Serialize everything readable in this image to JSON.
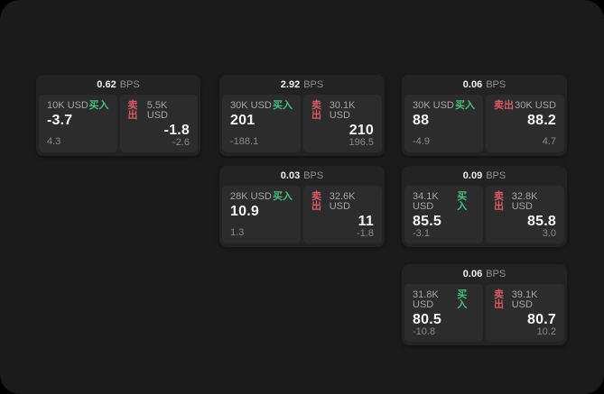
{
  "theme": {
    "outer_bg": "#000000",
    "screen_bg": "#1b1b1b",
    "card_bg": "#232323",
    "panel_bg": "#2c2c2c",
    "buy_color": "#45bf7e",
    "sell_color": "#d85a65",
    "primary_text": "#f5f5f5",
    "muted_text": "#8a8a8a"
  },
  "labels": {
    "bps": "BPS",
    "buy": "买入",
    "sell": "卖出"
  },
  "cards": [
    {
      "bps": "0.62",
      "buy": {
        "size": "10K USD",
        "price": "-3.7",
        "delta": "4.3"
      },
      "sell": {
        "size": "5.5K USD",
        "price": "-1.8",
        "delta": "-2.6"
      }
    },
    {
      "bps": "2.92",
      "buy": {
        "size": "30K USD",
        "price": "201",
        "delta": "-188.1"
      },
      "sell": {
        "size": "30.1K USD",
        "price": "210",
        "delta": "196.5"
      }
    },
    {
      "bps": "0.06",
      "buy": {
        "size": "30K USD",
        "price": "88",
        "delta": "-4.9"
      },
      "sell": {
        "size": "30K USD",
        "price": "88.2",
        "delta": "4.7"
      }
    },
    {
      "bps": "0.03",
      "buy": {
        "size": "28K USD",
        "price": "10.9",
        "delta": "1.3"
      },
      "sell": {
        "size": "32.6K USD",
        "price": "11",
        "delta": "-1.8"
      }
    },
    {
      "bps": "0.09",
      "buy": {
        "size": "34.1K USD",
        "price": "85.5",
        "delta": "-3.1"
      },
      "sell": {
        "size": "32.8K USD",
        "price": "85.8",
        "delta": "3.0"
      }
    },
    {
      "bps": "0.06",
      "buy": {
        "size": "31.8K USD",
        "price": "80.5",
        "delta": "-10.8"
      },
      "sell": {
        "size": "39.1K USD",
        "price": "80.7",
        "delta": "10.2"
      }
    }
  ]
}
